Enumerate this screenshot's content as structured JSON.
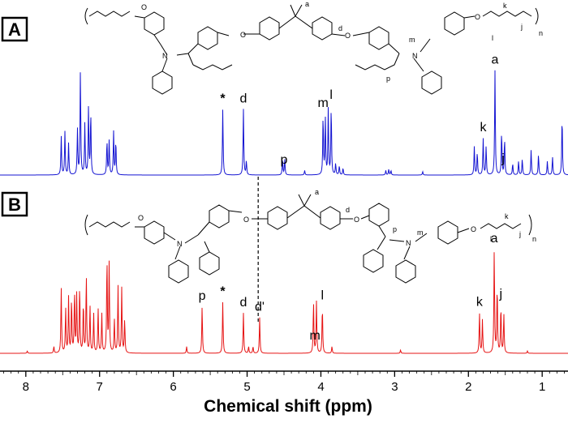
{
  "chart_data": {
    "type": "line",
    "xlabel": "Chemical shift (ppm)",
    "ylabel": "",
    "xlim": [
      8.35,
      0.65
    ],
    "x_direction": "reversed",
    "xticks": [
      "8",
      "7",
      "6",
      "5",
      "4",
      "3",
      "2",
      "1"
    ],
    "grid": false,
    "dashed_reference_ppm": 4.85,
    "series": [
      {
        "panel": "A",
        "color": "#1414d2",
        "peaks": [
          {
            "ppm": 7.52,
            "h": 0.34
          },
          {
            "ppm": 7.47,
            "h": 0.38
          },
          {
            "ppm": 7.42,
            "h": 0.28
          },
          {
            "ppm": 7.3,
            "h": 0.4
          },
          {
            "ppm": 7.26,
            "h": 0.92
          },
          {
            "ppm": 7.2,
            "h": 0.45
          },
          {
            "ppm": 7.15,
            "h": 0.6
          },
          {
            "ppm": 7.12,
            "h": 0.55
          },
          {
            "ppm": 6.9,
            "h": 0.3
          },
          {
            "ppm": 6.87,
            "h": 0.3
          },
          {
            "ppm": 6.81,
            "h": 0.38
          },
          {
            "ppm": 6.78,
            "h": 0.3
          },
          {
            "ppm": 5.33,
            "h": 0.58
          },
          {
            "ppm": 5.05,
            "h": 0.58
          },
          {
            "ppm": 5.01,
            "h": 0.12
          },
          {
            "ppm": 4.52,
            "h": 0.14
          },
          {
            "ppm": 4.49,
            "h": 0.14
          },
          {
            "ppm": 4.22,
            "h": 0.04
          },
          {
            "ppm": 3.97,
            "h": 0.52
          },
          {
            "ppm": 3.94,
            "h": 0.5
          },
          {
            "ppm": 3.9,
            "h": 0.58
          },
          {
            "ppm": 3.86,
            "h": 0.6
          },
          {
            "ppm": 3.8,
            "h": 0.1
          },
          {
            "ppm": 3.75,
            "h": 0.08
          },
          {
            "ppm": 3.7,
            "h": 0.06
          },
          {
            "ppm": 3.12,
            "h": 0.04
          },
          {
            "ppm": 3.08,
            "h": 0.05
          },
          {
            "ppm": 3.05,
            "h": 0.04
          },
          {
            "ppm": 2.62,
            "h": 0.03
          },
          {
            "ppm": 1.92,
            "h": 0.25
          },
          {
            "ppm": 1.88,
            "h": 0.2
          },
          {
            "ppm": 1.8,
            "h": 0.32
          },
          {
            "ppm": 1.76,
            "h": 0.25
          },
          {
            "ppm": 1.64,
            "h": 0.92
          },
          {
            "ppm": 1.55,
            "h": 0.38
          },
          {
            "ppm": 1.51,
            "h": 0.32
          },
          {
            "ppm": 1.4,
            "h": 0.1
          },
          {
            "ppm": 1.32,
            "h": 0.12
          },
          {
            "ppm": 1.27,
            "h": 0.14
          },
          {
            "ppm": 1.15,
            "h": 0.22
          },
          {
            "ppm": 1.05,
            "h": 0.18
          },
          {
            "ppm": 0.93,
            "h": 0.12
          },
          {
            "ppm": 0.86,
            "h": 0.16
          },
          {
            "ppm": 0.73,
            "h": 0.52
          }
        ]
      },
      {
        "panel": "B",
        "color": "#e61414",
        "peaks": [
          {
            "ppm": 7.98,
            "h": 0.02
          },
          {
            "ppm": 7.62,
            "h": 0.06
          },
          {
            "ppm": 7.52,
            "h": 0.58
          },
          {
            "ppm": 7.46,
            "h": 0.4
          },
          {
            "ppm": 7.42,
            "h": 0.5
          },
          {
            "ppm": 7.38,
            "h": 0.48
          },
          {
            "ppm": 7.34,
            "h": 0.55
          },
          {
            "ppm": 7.31,
            "h": 0.52
          },
          {
            "ppm": 7.27,
            "h": 0.6
          },
          {
            "ppm": 7.22,
            "h": 0.45
          },
          {
            "ppm": 7.18,
            "h": 0.7
          },
          {
            "ppm": 7.13,
            "h": 0.42
          },
          {
            "ppm": 7.08,
            "h": 0.35
          },
          {
            "ppm": 7.02,
            "h": 0.4
          },
          {
            "ppm": 6.97,
            "h": 0.35
          },
          {
            "ppm": 6.9,
            "h": 0.85
          },
          {
            "ppm": 6.87,
            "h": 0.8
          },
          {
            "ppm": 6.8,
            "h": 0.3
          },
          {
            "ppm": 6.75,
            "h": 0.6
          },
          {
            "ppm": 6.7,
            "h": 0.58
          },
          {
            "ppm": 6.66,
            "h": 0.3
          },
          {
            "ppm": 5.82,
            "h": 0.06
          },
          {
            "ppm": 5.61,
            "h": 0.42
          },
          {
            "ppm": 5.33,
            "h": 0.46
          },
          {
            "ppm": 5.05,
            "h": 0.36
          },
          {
            "ppm": 4.98,
            "h": 0.06
          },
          {
            "ppm": 4.92,
            "h": 0.06
          },
          {
            "ppm": 4.83,
            "h": 0.32
          },
          {
            "ppm": 4.1,
            "h": 0.46
          },
          {
            "ppm": 4.06,
            "h": 0.46
          },
          {
            "ppm": 3.98,
            "h": 0.42
          },
          {
            "ppm": 3.85,
            "h": 0.06
          },
          {
            "ppm": 2.92,
            "h": 0.03
          },
          {
            "ppm": 1.85,
            "h": 0.36
          },
          {
            "ppm": 1.81,
            "h": 0.3
          },
          {
            "ppm": 1.65,
            "h": 0.92
          },
          {
            "ppm": 1.61,
            "h": 0.6
          },
          {
            "ppm": 1.56,
            "h": 0.42
          },
          {
            "ppm": 1.52,
            "h": 0.35
          },
          {
            "ppm": 1.2,
            "h": 0.02
          }
        ]
      }
    ],
    "panels": [
      {
        "label": "A",
        "annotations": [
          {
            "text": "*",
            "ppm": 5.33,
            "bold": true
          },
          {
            "text": "d",
            "ppm": 5.05
          },
          {
            "text": "p",
            "ppm": 4.5
          },
          {
            "text": "m",
            "ppm": 3.97
          },
          {
            "text": "l",
            "ppm": 3.86
          },
          {
            "text": "k",
            "ppm": 1.8
          },
          {
            "text": "a",
            "ppm": 1.64
          },
          {
            "text": "j",
            "ppm": 1.53
          }
        ],
        "structure_labels": [
          "a",
          "d",
          "m",
          "l",
          "k",
          "j",
          "n",
          "N",
          "O",
          "O",
          "O",
          "N",
          "O",
          "p"
        ]
      },
      {
        "label": "B",
        "annotations": [
          {
            "text": "p",
            "ppm": 5.61
          },
          {
            "text": "*",
            "ppm": 5.33,
            "bold": true
          },
          {
            "text": "d",
            "ppm": 5.05
          },
          {
            "text": "d'",
            "ppm": 4.83
          },
          {
            "text": "m",
            "ppm": 4.08
          },
          {
            "text": "l",
            "ppm": 3.98
          },
          {
            "text": "k",
            "ppm": 1.85
          },
          {
            "text": "a",
            "ppm": 1.65
          },
          {
            "text": "j",
            "ppm": 1.56
          }
        ],
        "structure_labels": [
          "a",
          "d",
          "m",
          "l",
          "k",
          "j",
          "n",
          "N",
          "O",
          "O",
          "O",
          "N",
          "O",
          "p"
        ]
      }
    ]
  }
}
